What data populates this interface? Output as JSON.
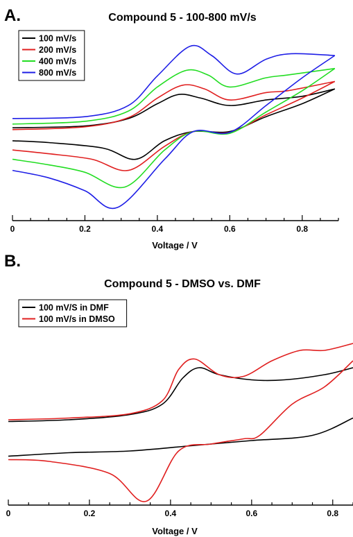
{
  "chart_data": [
    {
      "panel": "A.",
      "type": "line",
      "title": "Compound 5 - 100-800 mV/s",
      "xlabel": "Voltage / V",
      "ylabel": "",
      "xlim": [
        0,
        0.9
      ],
      "xticks": [
        "0",
        "0.2",
        "0.4",
        "0.6",
        "0.8"
      ],
      "xtick_values": [
        0,
        0.2,
        0.4,
        0.6,
        0.8
      ],
      "ylim": [
        -1.0,
        1.0
      ],
      "legend_position": "top-left",
      "grid": false,
      "series": [
        {
          "name": "100 mV/s",
          "color": "#000000",
          "forward": [
            [
              0,
              -0.02
            ],
            [
              0.2,
              0.0
            ],
            [
              0.32,
              0.08
            ],
            [
              0.4,
              0.24
            ],
            [
              0.46,
              0.34
            ],
            [
              0.52,
              0.3
            ],
            [
              0.6,
              0.22
            ],
            [
              0.7,
              0.28
            ],
            [
              0.8,
              0.32
            ],
            [
              0.89,
              0.4
            ]
          ],
          "reverse": [
            [
              0.89,
              0.4
            ],
            [
              0.8,
              0.24
            ],
            [
              0.7,
              0.1
            ],
            [
              0.6,
              -0.06
            ],
            [
              0.5,
              -0.06
            ],
            [
              0.42,
              -0.16
            ],
            [
              0.34,
              -0.36
            ],
            [
              0.25,
              -0.24
            ],
            [
              0.1,
              -0.18
            ],
            [
              0,
              -0.16
            ]
          ]
        },
        {
          "name": "200 mV/s",
          "color": "#e01f1f",
          "forward": [
            [
              0,
              -0.04
            ],
            [
              0.2,
              -0.01
            ],
            [
              0.32,
              0.09
            ],
            [
              0.4,
              0.3
            ],
            [
              0.47,
              0.44
            ],
            [
              0.53,
              0.4
            ],
            [
              0.6,
              0.28
            ],
            [
              0.7,
              0.36
            ],
            [
              0.76,
              0.38
            ],
            [
              0.89,
              0.48
            ]
          ],
          "reverse": [
            [
              0.89,
              0.48
            ],
            [
              0.8,
              0.3
            ],
            [
              0.7,
              0.12
            ],
            [
              0.6,
              -0.07
            ],
            [
              0.5,
              -0.06
            ],
            [
              0.42,
              -0.22
            ],
            [
              0.32,
              -0.48
            ],
            [
              0.22,
              -0.36
            ],
            [
              0.1,
              -0.3
            ],
            [
              0,
              -0.26
            ]
          ]
        },
        {
          "name": "400 mV/s",
          "color": "#22dd22",
          "forward": [
            [
              0,
              0.02
            ],
            [
              0.2,
              0.05
            ],
            [
              0.32,
              0.16
            ],
            [
              0.4,
              0.42
            ],
            [
              0.48,
              0.6
            ],
            [
              0.54,
              0.55
            ],
            [
              0.6,
              0.42
            ],
            [
              0.7,
              0.52
            ],
            [
              0.76,
              0.55
            ],
            [
              0.89,
              0.62
            ]
          ],
          "reverse": [
            [
              0.89,
              0.62
            ],
            [
              0.8,
              0.38
            ],
            [
              0.7,
              0.15
            ],
            [
              0.6,
              -0.08
            ],
            [
              0.5,
              -0.06
            ],
            [
              0.42,
              -0.26
            ],
            [
              0.31,
              -0.66
            ],
            [
              0.2,
              -0.5
            ],
            [
              0.1,
              -0.42
            ],
            [
              0,
              -0.36
            ]
          ]
        },
        {
          "name": "800 mV/s",
          "color": "#1e1ee6",
          "forward": [
            [
              0,
              0.08
            ],
            [
              0.2,
              0.1
            ],
            [
              0.32,
              0.22
            ],
            [
              0.4,
              0.54
            ],
            [
              0.49,
              0.86
            ],
            [
              0.55,
              0.76
            ],
            [
              0.62,
              0.56
            ],
            [
              0.7,
              0.72
            ],
            [
              0.77,
              0.78
            ],
            [
              0.89,
              0.76
            ]
          ],
          "reverse": [
            [
              0.89,
              0.76
            ],
            [
              0.8,
              0.52
            ],
            [
              0.7,
              0.22
            ],
            [
              0.6,
              -0.07
            ],
            [
              0.5,
              -0.06
            ],
            [
              0.42,
              -0.36
            ],
            [
              0.29,
              -0.88
            ],
            [
              0.2,
              -0.7
            ],
            [
              0.1,
              -0.56
            ],
            [
              0,
              -0.48
            ]
          ]
        }
      ]
    },
    {
      "panel": "B.",
      "type": "line",
      "title": "Compound 5 - DMSO vs. DMF",
      "xlabel": "Voltage / V",
      "ylabel": "",
      "xlim": [
        0,
        0.85
      ],
      "xticks": [
        "0",
        "0.2",
        "0.4",
        "0.6",
        "0.8"
      ],
      "xtick_values": [
        0,
        0.2,
        0.4,
        0.6,
        0.8
      ],
      "ylim": [
        -1.0,
        1.0
      ],
      "legend_position": "top-left",
      "grid": false,
      "series": [
        {
          "name": "100 mV/S in DMF",
          "color": "#000000",
          "forward": [
            [
              0,
              -0.1
            ],
            [
              0.15,
              -0.08
            ],
            [
              0.3,
              -0.02
            ],
            [
              0.38,
              0.1
            ],
            [
              0.43,
              0.4
            ],
            [
              0.47,
              0.52
            ],
            [
              0.52,
              0.44
            ],
            [
              0.6,
              0.38
            ],
            [
              0.68,
              0.38
            ],
            [
              0.78,
              0.44
            ],
            [
              0.85,
              0.52
            ]
          ],
          "reverse": [
            [
              0.85,
              -0.06
            ],
            [
              0.75,
              -0.26
            ],
            [
              0.6,
              -0.32
            ],
            [
              0.45,
              -0.38
            ],
            [
              0.3,
              -0.44
            ],
            [
              0.15,
              -0.46
            ],
            [
              0,
              -0.5
            ]
          ]
        },
        {
          "name": "100 mV/s in DMSO",
          "color": "#e01f1f",
          "forward": [
            [
              0,
              -0.08
            ],
            [
              0.15,
              -0.06
            ],
            [
              0.3,
              -0.01
            ],
            [
              0.38,
              0.14
            ],
            [
              0.42,
              0.5
            ],
            [
              0.46,
              0.62
            ],
            [
              0.52,
              0.44
            ],
            [
              0.58,
              0.42
            ],
            [
              0.65,
              0.6
            ],
            [
              0.72,
              0.72
            ],
            [
              0.78,
              0.72
            ],
            [
              0.85,
              0.8
            ]
          ],
          "reverse": [
            [
              0.85,
              0.6
            ],
            [
              0.78,
              0.3
            ],
            [
              0.7,
              0.1
            ],
            [
              0.62,
              -0.26
            ],
            [
              0.58,
              -0.3
            ],
            [
              0.5,
              -0.36
            ],
            [
              0.42,
              -0.44
            ],
            [
              0.34,
              -1.02
            ],
            [
              0.25,
              -0.7
            ],
            [
              0.1,
              -0.56
            ],
            [
              0,
              -0.54
            ]
          ]
        }
      ]
    }
  ]
}
